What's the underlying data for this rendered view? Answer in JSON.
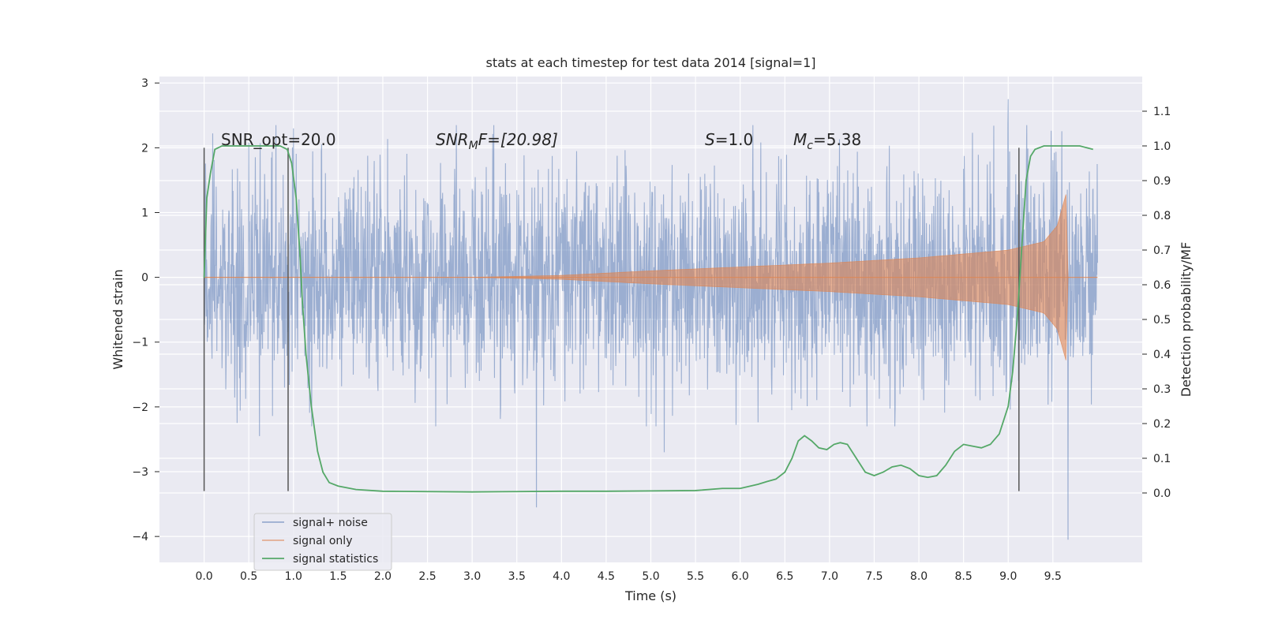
{
  "chart_data": {
    "type": "line",
    "title": "stats at each timestep for test data 2014 [signal=1]",
    "xlabel": "Time (s)",
    "ylabel": "Whitened strain",
    "ylabel_right": "Detection probability/MF",
    "xlim": [
      -0.5,
      10.5
    ],
    "ylim": [
      -4.4,
      3.1
    ],
    "ylim_right": [
      -0.2,
      1.2
    ],
    "xticks": [
      "0.0",
      "0.5",
      "1.0",
      "1.5",
      "2.0",
      "2.5",
      "3.0",
      "3.5",
      "4.0",
      "4.5",
      "5.0",
      "5.5",
      "6.0",
      "6.5",
      "7.0",
      "7.5",
      "8.0",
      "8.5",
      "9.0",
      "9.5"
    ],
    "yticks": [
      "3",
      "2",
      "1",
      "0",
      "−1",
      "−2",
      "−3",
      "−4"
    ],
    "yticks_right": [
      "1.1",
      "1.0",
      "0.9",
      "0.8",
      "0.7",
      "0.6",
      "0.5",
      "0.4",
      "0.3",
      "0.2",
      "0.1",
      "0.0"
    ],
    "grid": true,
    "legend_position": "lower-left",
    "colors": {
      "noise": "#4c72b0",
      "signal": "#dd8452",
      "stats": "#55a868",
      "vline": "#555555",
      "background": "#eaeaf2"
    },
    "annotations": {
      "snr_opt": "SNR_opt=20.0",
      "snr_mf_base": "SNR",
      "snr_mf_sub": "M",
      "snr_mf_rest": "F=[20.98]",
      "s_name": "S",
      "s_value": "=1.0",
      "mc_base": "M",
      "mc_sub": "c",
      "mc_value": "=5.38"
    },
    "series": [
      {
        "name": "signal+ noise",
        "t_start": 0.0,
        "t_end": 10.0,
        "description_stats": {
          "typical_amplitude": 1.3,
          "max": 2.75,
          "min": -4.05
        },
        "outliers": [
          [
            0.0,
            2.0
          ],
          [
            0.62,
            -2.45
          ],
          [
            1.0,
            2.3
          ],
          [
            3.72,
            -3.55
          ],
          [
            5.15,
            -2.7
          ],
          [
            9.0,
            2.75
          ],
          [
            9.67,
            -4.05
          ]
        ]
      },
      {
        "name": "signal only",
        "t_start": 0.0,
        "t_end": 9.67,
        "envelope": [
          [
            0.0,
            0.0
          ],
          [
            3.0,
            0.0
          ],
          [
            4.0,
            0.03
          ],
          [
            5.0,
            0.1
          ],
          [
            6.0,
            0.16
          ],
          [
            7.0,
            0.22
          ],
          [
            8.0,
            0.3
          ],
          [
            9.0,
            0.42
          ],
          [
            9.4,
            0.55
          ],
          [
            9.55,
            0.8
          ],
          [
            9.65,
            1.3
          ],
          [
            9.67,
            0.0
          ],
          [
            10.0,
            0.0
          ]
        ]
      },
      {
        "name": "signal statistics",
        "x": [
          0.0,
          0.03,
          0.07,
          0.12,
          0.2,
          0.3,
          0.45,
          0.6,
          0.75,
          0.85,
          0.93,
          0.98,
          1.03,
          1.07,
          1.1,
          1.14,
          1.2,
          1.27,
          1.33,
          1.4,
          1.5,
          1.7,
          2.0,
          3.0,
          3.5,
          4.0,
          4.5,
          5.0,
          5.5,
          5.8,
          6.0,
          6.2,
          6.3,
          6.4,
          6.5,
          6.58,
          6.65,
          6.72,
          6.8,
          6.88,
          6.97,
          7.05,
          7.12,
          7.2,
          7.3,
          7.4,
          7.5,
          7.6,
          7.7,
          7.8,
          7.9,
          8.0,
          8.1,
          8.2,
          8.3,
          8.4,
          8.5,
          8.6,
          8.7,
          8.8,
          8.9,
          9.0,
          9.05,
          9.1,
          9.15,
          9.2,
          9.25,
          9.3,
          9.4,
          9.6,
          9.8,
          9.95
        ],
        "y": [
          0.62,
          0.85,
          0.92,
          0.99,
          1.0,
          1.0,
          1.0,
          1.0,
          1.0,
          1.0,
          0.99,
          0.95,
          0.85,
          0.7,
          0.55,
          0.4,
          0.25,
          0.12,
          0.06,
          0.03,
          0.02,
          0.01,
          0.005,
          0.003,
          0.004,
          0.005,
          0.005,
          0.006,
          0.007,
          0.013,
          0.013,
          0.025,
          0.033,
          0.04,
          0.06,
          0.1,
          0.15,
          0.165,
          0.15,
          0.13,
          0.125,
          0.14,
          0.145,
          0.14,
          0.1,
          0.06,
          0.05,
          0.06,
          0.075,
          0.08,
          0.07,
          0.05,
          0.045,
          0.05,
          0.08,
          0.12,
          0.14,
          0.135,
          0.13,
          0.14,
          0.17,
          0.25,
          0.35,
          0.5,
          0.7,
          0.9,
          0.97,
          0.99,
          1.0,
          1.0,
          1.0,
          0.99
        ]
      }
    ],
    "vlines": [
      {
        "x": 0.0,
        "y_from": -3.3,
        "y_to": 2.0
      },
      {
        "x": 0.94,
        "y_from": -3.3,
        "y_to": 2.0
      },
      {
        "x": 9.12,
        "y_from": -3.3,
        "y_to": 2.0
      }
    ]
  }
}
